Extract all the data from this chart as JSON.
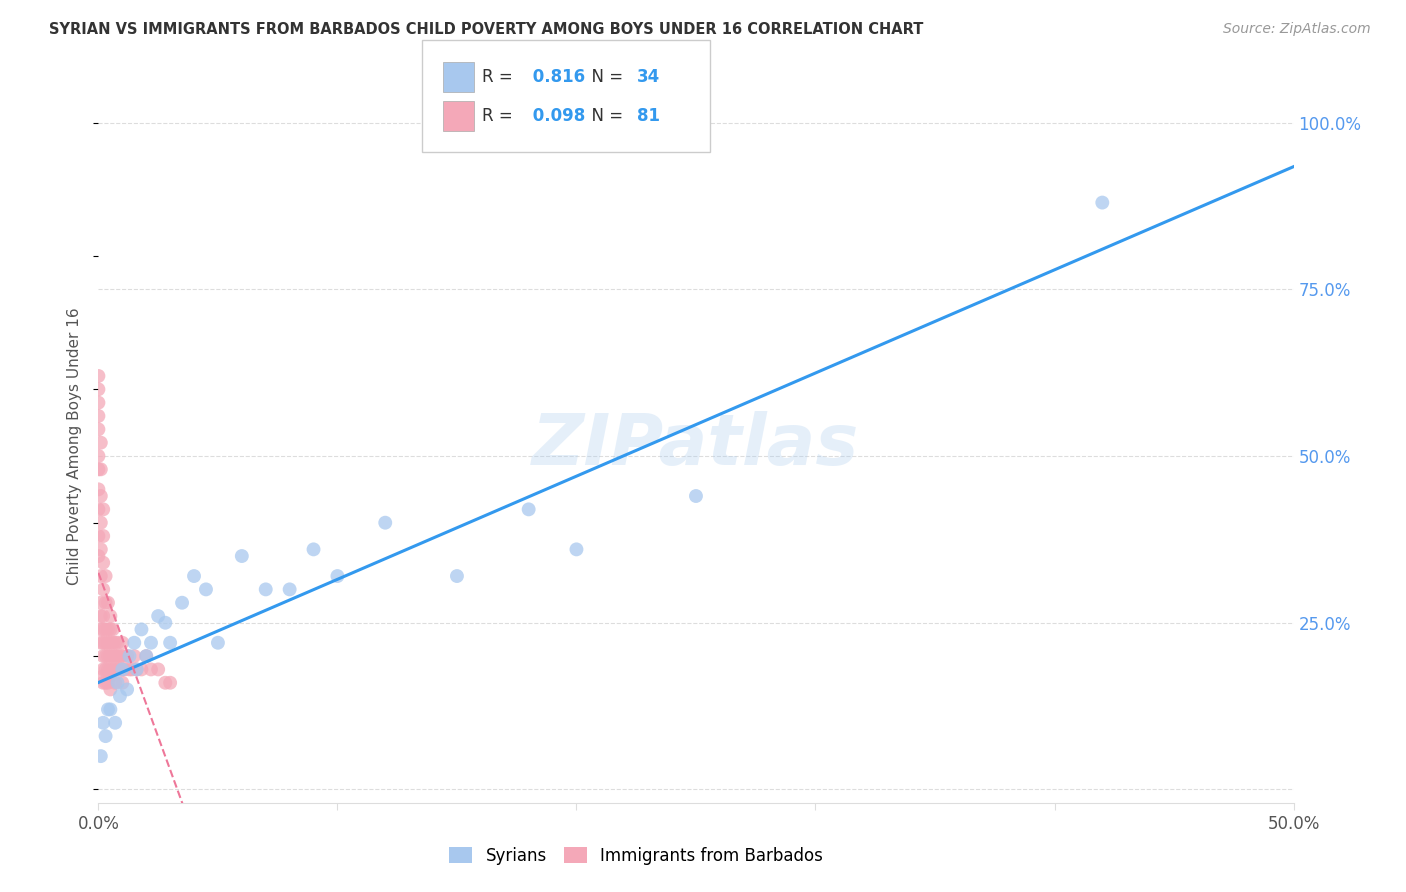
{
  "title": "SYRIAN VS IMMIGRANTS FROM BARBADOS CHILD POVERTY AMONG BOYS UNDER 16 CORRELATION CHART",
  "source": "Source: ZipAtlas.com",
  "ylabel": "Child Poverty Among Boys Under 16",
  "xlim": [
    0.0,
    0.5
  ],
  "ylim": [
    -0.02,
    1.05
  ],
  "blue_R": 0.816,
  "blue_N": 34,
  "pink_R": 0.098,
  "pink_N": 81,
  "blue_color": "#A8C8EE",
  "pink_color": "#F4A8B8",
  "blue_line_color": "#3399EE",
  "pink_line_color": "#EE7799",
  "grid_color": "#DDDDDD",
  "watermark": "ZIPatlas",
  "blue_points_x": [
    0.001,
    0.002,
    0.003,
    0.004,
    0.005,
    0.007,
    0.008,
    0.009,
    0.01,
    0.012,
    0.013,
    0.015,
    0.016,
    0.018,
    0.02,
    0.022,
    0.025,
    0.028,
    0.03,
    0.035,
    0.04,
    0.045,
    0.05,
    0.06,
    0.07,
    0.08,
    0.09,
    0.1,
    0.12,
    0.15,
    0.18,
    0.2,
    0.25,
    0.42
  ],
  "blue_points_y": [
    0.05,
    0.1,
    0.08,
    0.12,
    0.12,
    0.1,
    0.16,
    0.14,
    0.18,
    0.15,
    0.2,
    0.22,
    0.18,
    0.24,
    0.2,
    0.22,
    0.26,
    0.25,
    0.22,
    0.28,
    0.32,
    0.3,
    0.22,
    0.35,
    0.3,
    0.3,
    0.36,
    0.32,
    0.4,
    0.32,
    0.42,
    0.36,
    0.44,
    0.88
  ],
  "pink_points_x": [
    0.0,
    0.0,
    0.0,
    0.0,
    0.0,
    0.0,
    0.0,
    0.0,
    0.0,
    0.0,
    0.0,
    0.001,
    0.001,
    0.001,
    0.001,
    0.001,
    0.001,
    0.001,
    0.001,
    0.001,
    0.001,
    0.002,
    0.002,
    0.002,
    0.002,
    0.002,
    0.002,
    0.002,
    0.002,
    0.002,
    0.002,
    0.002,
    0.003,
    0.003,
    0.003,
    0.003,
    0.003,
    0.003,
    0.003,
    0.004,
    0.004,
    0.004,
    0.004,
    0.004,
    0.004,
    0.005,
    0.005,
    0.005,
    0.005,
    0.005,
    0.005,
    0.005,
    0.006,
    0.006,
    0.006,
    0.006,
    0.007,
    0.007,
    0.007,
    0.007,
    0.008,
    0.008,
    0.008,
    0.009,
    0.009,
    0.01,
    0.01,
    0.01,
    0.01,
    0.011,
    0.012,
    0.013,
    0.014,
    0.015,
    0.016,
    0.018,
    0.02,
    0.022,
    0.025,
    0.028,
    0.03
  ],
  "pink_points_y": [
    0.62,
    0.6,
    0.58,
    0.56,
    0.54,
    0.5,
    0.48,
    0.45,
    0.42,
    0.38,
    0.35,
    0.52,
    0.48,
    0.44,
    0.4,
    0.36,
    0.32,
    0.28,
    0.26,
    0.24,
    0.22,
    0.42,
    0.38,
    0.34,
    0.3,
    0.26,
    0.24,
    0.22,
    0.2,
    0.18,
    0.17,
    0.16,
    0.32,
    0.28,
    0.24,
    0.22,
    0.2,
    0.18,
    0.16,
    0.28,
    0.24,
    0.22,
    0.2,
    0.18,
    0.16,
    0.26,
    0.24,
    0.22,
    0.2,
    0.18,
    0.17,
    0.15,
    0.24,
    0.22,
    0.2,
    0.18,
    0.22,
    0.2,
    0.18,
    0.16,
    0.22,
    0.2,
    0.18,
    0.2,
    0.18,
    0.22,
    0.2,
    0.18,
    0.16,
    0.18,
    0.2,
    0.18,
    0.18,
    0.2,
    0.18,
    0.18,
    0.2,
    0.18,
    0.18,
    0.16,
    0.16
  ]
}
